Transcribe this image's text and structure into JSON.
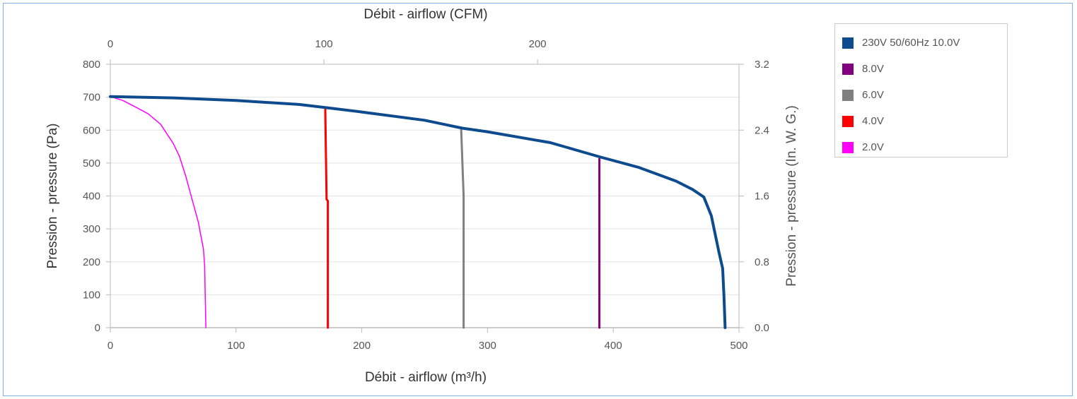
{
  "chart_data": {
    "type": "line",
    "title": "",
    "xlabel": "Débit - airflow (m³/h)",
    "ylabel": "Pression - pressure (Pa)",
    "x2label": "Débit - airflow (CFM)",
    "y2label": "Pression - pressure (In. W. G.)",
    "xlim": [
      0,
      500
    ],
    "ylim": [
      0,
      800
    ],
    "x2lim": [
      0,
      294.3
    ],
    "y2lim": [
      0,
      3.2
    ],
    "x_ticks": [
      "0",
      "100",
      "200",
      "300",
      "400",
      "500"
    ],
    "y_ticks": [
      "0",
      "100",
      "200",
      "300",
      "400",
      "500",
      "600",
      "700",
      "800"
    ],
    "x2_ticks": [
      {
        "value": 0,
        "label": "0"
      },
      {
        "value": 100,
        "label": "100"
      },
      {
        "value": 200,
        "label": "200"
      }
    ],
    "y2_ticks": [
      "0.0",
      "0.8",
      "1.6",
      "2.4",
      "3.2"
    ],
    "grid": true,
    "legend_position": "right",
    "series": [
      {
        "name": "230V 50/60Hz 10.0V",
        "color": "#0e4a8e",
        "width": 4,
        "points": [
          [
            0,
            702
          ],
          [
            50,
            698
          ],
          [
            100,
            690
          ],
          [
            150,
            678
          ],
          [
            172,
            668
          ],
          [
            200,
            655
          ],
          [
            250,
            630
          ],
          [
            280,
            606
          ],
          [
            300,
            595
          ],
          [
            350,
            562
          ],
          [
            390,
            518
          ],
          [
            420,
            487
          ],
          [
            450,
            445
          ],
          [
            463,
            420
          ],
          [
            472,
            397
          ],
          [
            478,
            340
          ],
          [
            484,
            230
          ],
          [
            487,
            180
          ],
          [
            488,
            100
          ],
          [
            489,
            0
          ]
        ]
      },
      {
        "name": "8.0V",
        "color": "#800080",
        "width": 3,
        "points": [
          [
            389,
            512
          ],
          [
            389,
            300
          ],
          [
            389,
            0
          ]
        ]
      },
      {
        "name": "6.0V",
        "color": "#808080",
        "width": 3,
        "points": [
          [
            279,
            606
          ],
          [
            281,
            400
          ],
          [
            281,
            200
          ],
          [
            281,
            0
          ]
        ]
      },
      {
        "name": "4.0V",
        "color": "#ff0000",
        "width": 3,
        "points": [
          [
            171,
            662
          ],
          [
            172,
            390
          ],
          [
            173,
            385
          ],
          [
            173,
            0
          ]
        ]
      },
      {
        "name": "2.0V",
        "color": "#ff00ff",
        "width": 1.5,
        "points": [
          [
            0,
            702
          ],
          [
            10,
            690
          ],
          [
            20,
            670
          ],
          [
            30,
            650
          ],
          [
            40,
            618
          ],
          [
            50,
            560
          ],
          [
            55,
            520
          ],
          [
            60,
            460
          ],
          [
            65,
            390
          ],
          [
            70,
            320
          ],
          [
            74,
            240
          ],
          [
            75,
            190
          ],
          [
            75.5,
            100
          ],
          [
            76,
            0
          ]
        ]
      }
    ]
  }
}
